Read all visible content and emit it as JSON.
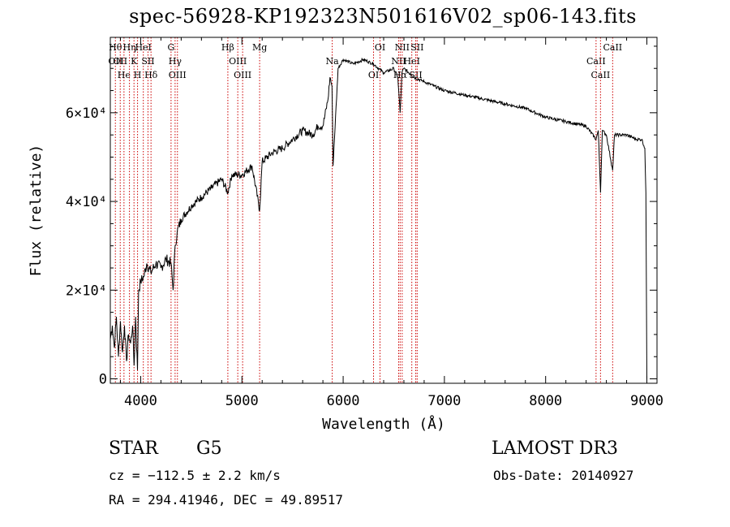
{
  "title": "spec-56928-KP192323N501616V02_sp06-143.fits",
  "info": {
    "class_label": "STAR",
    "subclass": "G5",
    "survey": "LAMOST DR3",
    "cz": "cz = −112.5 ± 2.2 km/s",
    "obs_date": "Obs-Date: 20140927",
    "coords": "RA = 294.41946, DEC =  49.89517"
  },
  "chart_data": {
    "type": "line",
    "title": "spec-56928-KP192323N501616V02_sp06-143.fits",
    "xlabel": "Wavelength (Å)",
    "ylabel": "Flux (relative)",
    "xlim": [
      3700,
      9100
    ],
    "ylim": [
      -1000,
      77000
    ],
    "grid": false,
    "x_ticks": [
      {
        "value": 4000,
        "label": "4000"
      },
      {
        "value": 5000,
        "label": "5000"
      },
      {
        "value": 6000,
        "label": "6000"
      },
      {
        "value": 7000,
        "label": "7000"
      },
      {
        "value": 8000,
        "label": "8000"
      },
      {
        "value": 9000,
        "label": "9000"
      }
    ],
    "y_ticks": [
      {
        "value": 0,
        "label": "0"
      },
      {
        "value": 20000,
        "label": "2×10⁴"
      },
      {
        "value": 40000,
        "label": "4×10⁴"
      },
      {
        "value": 60000,
        "label": "6×10⁴"
      }
    ],
    "series": [
      {
        "name": "flux",
        "x": [
          3700,
          3720,
          3740,
          3760,
          3780,
          3800,
          3820,
          3840,
          3860,
          3880,
          3900,
          3920,
          3935,
          3950,
          3968,
          3980,
          4000,
          4030,
          4060,
          4100,
          4150,
          4200,
          4250,
          4300,
          4320,
          4340,
          4360,
          4400,
          4500,
          4600,
          4700,
          4800,
          4861,
          4900,
          5000,
          5100,
          5175,
          5200,
          5300,
          5400,
          5500,
          5600,
          5700,
          5750,
          5800,
          5850,
          5870,
          5890,
          5900,
          5950,
          6000,
          6100,
          6200,
          6300,
          6400,
          6500,
          6540,
          6563,
          6580,
          6600,
          6700,
          6800,
          6900,
          7000,
          7200,
          7400,
          7600,
          7800,
          8000,
          8200,
          8400,
          8498,
          8520,
          8542,
          8560,
          8600,
          8662,
          8680,
          8800,
          8900,
          8950,
          8980,
          8990,
          9000
        ],
        "y": [
          9000,
          12000,
          7000,
          14000,
          5000,
          13000,
          6000,
          12000,
          4000,
          10000,
          8000,
          12000,
          3000,
          14000,
          2000,
          20000,
          22000,
          23000,
          26000,
          24000,
          26000,
          25000,
          27000,
          26000,
          20000,
          30000,
          33000,
          36000,
          39000,
          41000,
          43000,
          45000,
          42000,
          46000,
          46000,
          48000,
          38000,
          49000,
          51000,
          52000,
          54000,
          56000,
          55000,
          57000,
          57000,
          63000,
          68000,
          66000,
          48000,
          70000,
          72000,
          71000,
          72000,
          71000,
          69000,
          70000,
          68000,
          60000,
          69000,
          70000,
          68000,
          67000,
          66000,
          65000,
          64000,
          63000,
          62000,
          61000,
          59000,
          58000,
          57000,
          54000,
          56000,
          42000,
          56000,
          55000,
          47000,
          55000,
          55000,
          54000,
          54000,
          52000,
          42000,
          0
        ]
      }
    ],
    "line_markers": [
      {
        "x": 3750,
        "labels": [
          "Hθ",
          "OII"
        ]
      },
      {
        "x": 3798,
        "labels": [
          "OII"
        ]
      },
      {
        "x": 3835,
        "labels": [
          "He"
        ]
      },
      {
        "x": 3889,
        "labels": [
          "Hη"
        ]
      },
      {
        "x": 3934,
        "labels": [
          "K"
        ]
      },
      {
        "x": 3969,
        "labels": [
          "H"
        ]
      },
      {
        "x": 4026,
        "labels": [
          "HeI"
        ]
      },
      {
        "x": 4072,
        "labels": [
          "SII"
        ]
      },
      {
        "x": 4102,
        "labels": [
          "Hδ"
        ]
      },
      {
        "x": 4300,
        "labels": [
          "G"
        ]
      },
      {
        "x": 4340,
        "labels": [
          "Hγ"
        ]
      },
      {
        "x": 4363,
        "labels": [
          "OIII"
        ]
      },
      {
        "x": 4861,
        "labels": [
          "Hβ"
        ]
      },
      {
        "x": 4959,
        "labels": [
          "OIII"
        ]
      },
      {
        "x": 5007,
        "labels": [
          "OIII"
        ]
      },
      {
        "x": 5175,
        "labels": [
          "Mg"
        ]
      },
      {
        "x": 5892,
        "labels": [
          "Na"
        ]
      },
      {
        "x": 6300,
        "labels": [
          "OI"
        ]
      },
      {
        "x": 6364,
        "labels": [
          "OI"
        ]
      },
      {
        "x": 6548,
        "labels": [
          "NII"
        ]
      },
      {
        "x": 6563,
        "labels": [
          "Hα"
        ]
      },
      {
        "x": 6583,
        "labels": [
          "NII"
        ]
      },
      {
        "x": 6678,
        "labels": [
          "HeI"
        ]
      },
      {
        "x": 6717,
        "labels": [
          "SII"
        ]
      },
      {
        "x": 6731,
        "labels": [
          "SII"
        ]
      },
      {
        "x": 8498,
        "labels": [
          "CaII"
        ]
      },
      {
        "x": 8542,
        "labels": [
          "CaII"
        ]
      },
      {
        "x": 8662,
        "labels": [
          "CaII"
        ]
      }
    ],
    "line_color": "#000000",
    "marker_color": "#cc0000"
  }
}
